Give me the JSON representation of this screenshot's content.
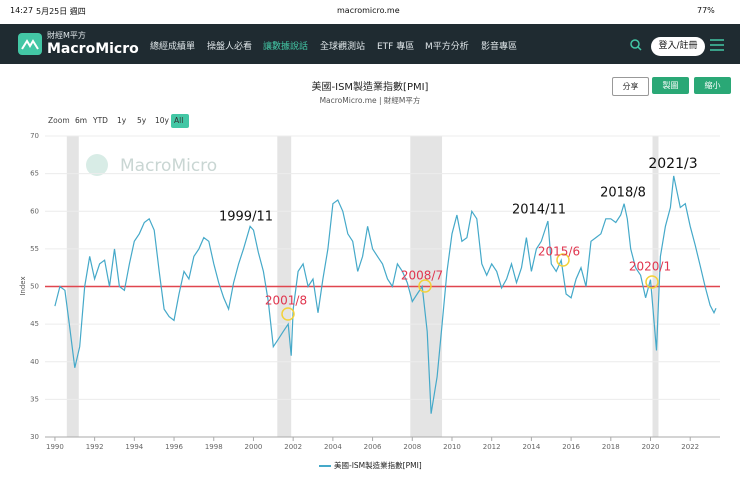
{
  "status_bar": {
    "time": "14:27",
    "date": "5月25日 週四",
    "url": "macromicro.me",
    "battery": "77%"
  },
  "nav": {
    "logo_sub": "財經M平方",
    "logo": "MacroMicro",
    "items": [
      "總經成績單",
      "操盤人必看",
      "讓數據說話",
      "全球觀測站",
      "ETF 專區",
      "M平方分析",
      "影音專區"
    ],
    "login": "登入/註冊"
  },
  "buttons": [
    "分享",
    "製圖",
    "縮小"
  ],
  "chart_data": {
    "type": "line",
    "title": "美國-ISM製造業指數[PMI]",
    "subtitle": "MacroMicro.me | 財經M平方",
    "watermark": "MacroMicro",
    "y_label": "Index",
    "zoom_label": "Zoom",
    "zoom_options": [
      "6m",
      "YTD",
      "1y",
      "5y",
      "10y",
      "All"
    ],
    "x": [
      1990,
      1990.25,
      1990.5,
      1990.75,
      1991,
      1991.25,
      1991.5,
      1991.75,
      1992,
      1992.25,
      1992.5,
      1992.75,
      1993,
      1993.25,
      1993.5,
      1993.75,
      1994,
      1994.25,
      1994.5,
      1994.75,
      1995,
      1995.25,
      1995.5,
      1995.75,
      1996,
      1996.25,
      1996.5,
      1996.75,
      1997,
      1997.25,
      1997.5,
      1997.75,
      1998,
      1998.25,
      1998.5,
      1998.75,
      1999,
      1999.25,
      1999.5,
      1999.83,
      2000,
      2000.25,
      2000.5,
      2000.75,
      2001,
      2001.25,
      2001.5,
      2001.75,
      2001.9,
      2002,
      2002.25,
      2002.5,
      2002.75,
      2003,
      2003.25,
      2003.5,
      2003.75,
      2004,
      2004.25,
      2004.5,
      2004.75,
      2005,
      2005.25,
      2005.5,
      2005.75,
      2006,
      2006.25,
      2006.5,
      2006.75,
      2007,
      2007.25,
      2007.5,
      2007.75,
      2008,
      2008.25,
      2008.5,
      2008.75,
      2008.95,
      2009.25,
      2009.5,
      2009.75,
      2010,
      2010.25,
      2010.5,
      2010.75,
      2011,
      2011.25,
      2011.5,
      2011.75,
      2012,
      2012.25,
      2012.5,
      2012.75,
      2013,
      2013.25,
      2013.5,
      2013.75,
      2014,
      2014.25,
      2014.5,
      2014.83,
      2015,
      2015.25,
      2015.5,
      2015.75,
      2016,
      2016.25,
      2016.5,
      2016.75,
      2017,
      2017.25,
      2017.5,
      2017.75,
      2018,
      2018.25,
      2018.5,
      2018.67,
      2018.83,
      2019,
      2019.25,
      2019.5,
      2019.75,
      2020,
      2020.3,
      2020.5,
      2020.75,
      2021,
      2021.17,
      2021.5,
      2021.75,
      2022,
      2022.25,
      2022.5,
      2022.75,
      2023,
      2023.2,
      2023.3
    ],
    "series": [
      {
        "name": "美國-ISM製造業指數[PMI]",
        "color": "#45a9c9",
        "values": [
          47.4,
          50,
          49.5,
          44.5,
          39.2,
          42,
          50,
          54,
          51,
          53,
          53.5,
          50,
          55,
          50,
          49.5,
          53,
          56,
          57,
          58.5,
          59,
          57.5,
          52,
          47,
          46,
          45.5,
          49,
          52,
          51,
          54,
          55,
          56.5,
          56,
          53,
          50.5,
          48.5,
          47,
          50.5,
          53,
          55,
          58,
          57.5,
          54.5,
          52,
          48,
          42,
          43,
          44,
          45,
          40.8,
          47,
          52,
          53,
          50,
          51,
          46.5,
          51,
          55,
          61,
          61.5,
          60,
          57,
          56,
          52,
          54,
          58,
          55,
          54,
          53,
          51,
          50,
          53,
          52,
          50.5,
          48,
          49,
          50,
          44,
          33.1,
          38,
          45,
          52,
          57,
          59.5,
          56,
          56.5,
          60,
          59,
          53,
          51.5,
          53,
          52,
          49.8,
          51,
          53,
          50.5,
          52.5,
          56.5,
          52,
          55,
          56,
          58.7,
          53,
          52,
          53.5,
          49,
          48.5,
          51,
          52.5,
          50,
          56,
          56.5,
          57,
          59,
          59,
          58.5,
          59.5,
          61,
          59,
          55,
          52.5,
          51.5,
          48.5,
          50.9,
          41.5,
          54,
          58,
          60.5,
          64.7,
          60.5,
          61,
          58,
          55.5,
          52.8,
          50,
          47.5,
          46.5,
          47.1
        ]
      }
    ],
    "reference_line": {
      "value": 50,
      "color": "#e0464f"
    },
    "shaded_ranges": [
      [
        1990.6,
        1991.2
      ],
      [
        2001.2,
        2001.9
      ],
      [
        2007.9,
        2009.5
      ],
      [
        2020.1,
        2020.4
      ]
    ],
    "annotations": [
      {
        "text": "1999/11",
        "color": "#111111"
      },
      {
        "text": "2001/8",
        "color": "#e0364f"
      },
      {
        "text": "2008/7",
        "color": "#e0364f"
      },
      {
        "text": "2014/11",
        "color": "#111111"
      },
      {
        "text": "2015/6",
        "color": "#e0364f"
      },
      {
        "text": "2018/8",
        "color": "#111111"
      },
      {
        "text": "2020/1",
        "color": "#e0364f"
      },
      {
        "text": "2021/3",
        "color": "#111111"
      }
    ],
    "xlim": [
      1989.5,
      2023.5
    ],
    "ylim": [
      30,
      70
    ],
    "xticks": [
      1990,
      1992,
      1994,
      1996,
      1998,
      2000,
      2002,
      2004,
      2006,
      2008,
      2010,
      2012,
      2014,
      2016,
      2018,
      2020,
      2022
    ],
    "yticks": [
      30,
      35,
      40,
      45,
      50,
      55,
      60,
      65,
      70
    ],
    "grid": true,
    "legend": "bottom"
  }
}
